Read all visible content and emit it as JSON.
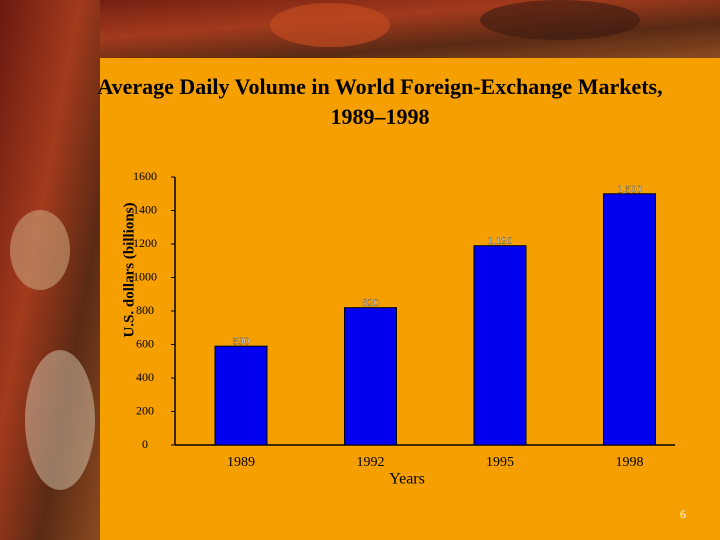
{
  "chart_data": {
    "type": "bar",
    "title": "Average Daily Volume in World Foreign-Exchange Markets, 1989–1998",
    "y_label": "U.S. dollars (billions)",
    "x_label": "Years",
    "categories": [
      "1989",
      "1992",
      "1995",
      "1998"
    ],
    "values": [
      590,
      820,
      1190,
      1500
    ],
    "value_labels": [
      "590",
      "820",
      "1,190",
      "1,500"
    ],
    "color": "#0000ee",
    "ylim": [
      0,
      1600
    ],
    "yticks": [
      0,
      200,
      400,
      600,
      800,
      1000,
      1200,
      1400,
      1600
    ]
  },
  "page_number": "6"
}
